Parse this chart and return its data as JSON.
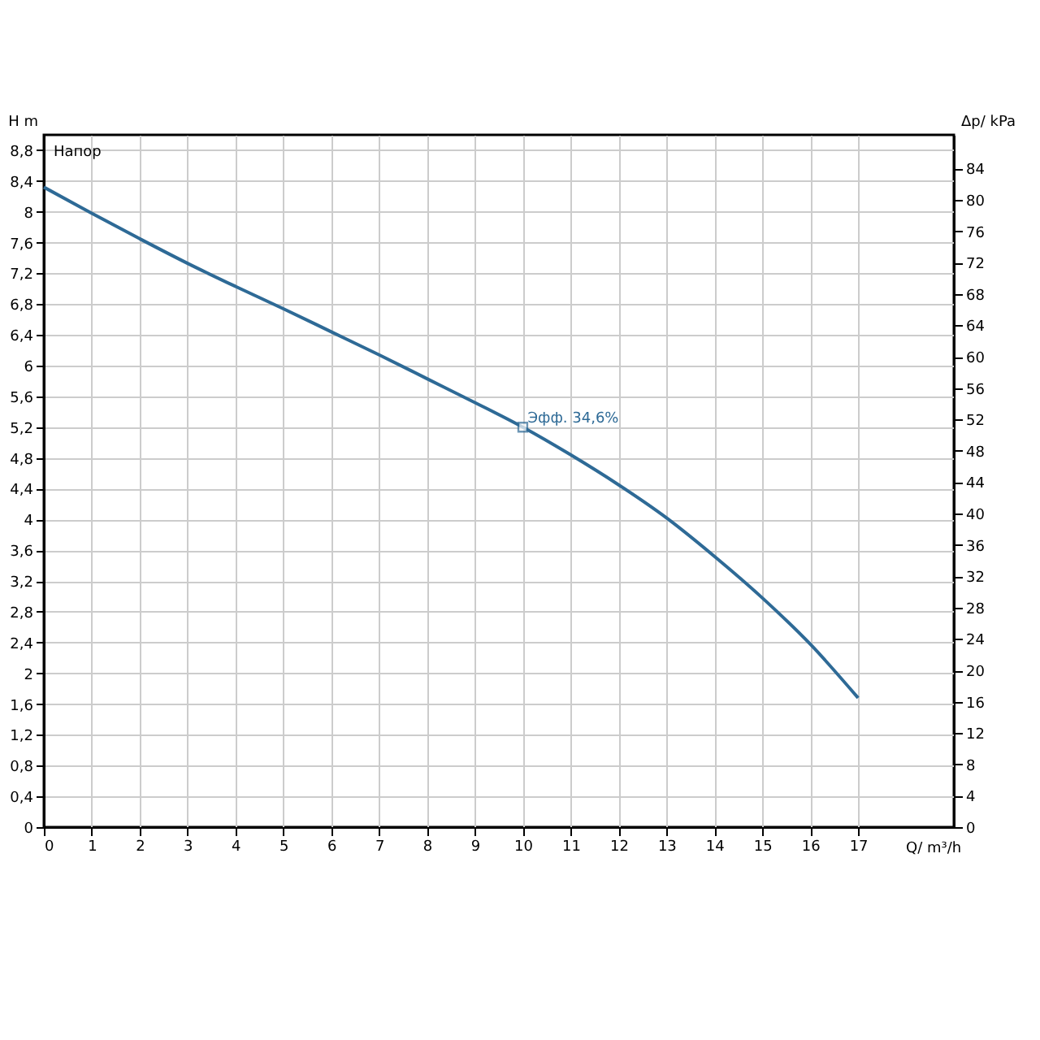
{
  "chart_data": {
    "type": "line",
    "xlabel": "Q/ m³/h",
    "ylabel": "H m",
    "y2label": "Δp/ kPa",
    "annotations": [
      "Напор",
      {
        "text": "Эфф. 34,6%",
        "x": 10,
        "y": 5.2
      }
    ],
    "x": [
      0,
      1,
      2,
      3,
      4,
      5,
      6,
      7,
      8,
      9,
      10,
      11,
      12,
      13,
      14,
      15,
      16,
      17
    ],
    "series": [
      {
        "color": "#2e6a96",
        "values": [
          8.32,
          7.98,
          7.65,
          7.33,
          7.03,
          6.74,
          6.44,
          6.14,
          5.83,
          5.52,
          5.2,
          4.84,
          4.45,
          4.02,
          3.52,
          2.98,
          2.38,
          1.68
        ]
      }
    ],
    "xlim": [
      0,
      19
    ],
    "xticks": [
      0,
      1,
      2,
      3,
      4,
      5,
      6,
      7,
      8,
      9,
      10,
      11,
      12,
      13,
      14,
      15,
      16,
      17
    ],
    "ylim": [
      0,
      9.0
    ],
    "yticks": [
      0,
      {
        "value": 0.4,
        "label": "0,4"
      },
      {
        "value": 0.8,
        "label": "0,8"
      },
      {
        "value": 1.2,
        "label": "1,2"
      },
      {
        "value": 1.6,
        "label": "1,6"
      },
      2,
      {
        "value": 2.4,
        "label": "2,4"
      },
      {
        "value": 2.8,
        "label": "2,8"
      },
      {
        "value": 3.2,
        "label": "3,2"
      },
      {
        "value": 3.6,
        "label": "3,6"
      },
      4,
      {
        "value": 4.4,
        "label": "4,4"
      },
      {
        "value": 4.8,
        "label": "4,8"
      },
      {
        "value": 5.2,
        "label": "5,2"
      },
      {
        "value": 5.6,
        "label": "5,6"
      },
      6,
      {
        "value": 6.4,
        "label": "6,4"
      },
      {
        "value": 6.8,
        "label": "6,8"
      },
      {
        "value": 7.2,
        "label": "7,2"
      },
      {
        "value": 7.6,
        "label": "7,6"
      },
      8,
      {
        "value": 8.4,
        "label": "8,4"
      },
      {
        "value": 8.8,
        "label": "8,8"
      }
    ],
    "y2lim": [
      0,
      88.3
    ],
    "y2ticks": [
      0,
      4,
      8,
      12,
      16,
      20,
      24,
      28,
      32,
      36,
      40,
      44,
      48,
      52,
      56,
      60,
      64,
      68,
      72,
      76,
      80,
      84
    ],
    "grid": true,
    "marker": "none",
    "line_style": "solid"
  }
}
